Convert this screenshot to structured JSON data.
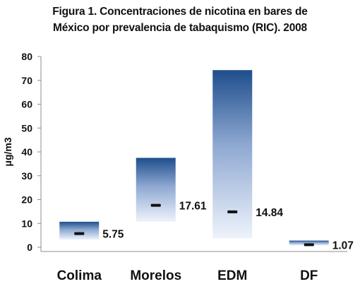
{
  "chart_data": {
    "type": "bar",
    "title_lines": [
      "Figura 1. Concentraciones de nicotina en bares de",
      "México por prevalencia de tabaquismo (RIC). 2008"
    ],
    "ylabel": "μg/m3",
    "xlabel": "",
    "ylim": [
      0,
      80
    ],
    "yticks": [
      0,
      10,
      20,
      30,
      40,
      50,
      60,
      70,
      80
    ],
    "grid": false,
    "legend": "none",
    "bar_color_top": "#1f4e8c",
    "bar_color_bottom": "#eef3fb",
    "categories": [
      "Colima",
      "Morelos",
      "EDM",
      "DF"
    ],
    "iqr_low": [
      3.2,
      10.7,
      3.8,
      0.8
    ],
    "iqr_high": [
      10.7,
      37.5,
      74.3,
      2.8
    ],
    "medians": [
      5.75,
      17.61,
      14.84,
      1.07
    ],
    "median_labels": [
      "5.75",
      "17.61",
      "14.84",
      "1.07"
    ]
  }
}
